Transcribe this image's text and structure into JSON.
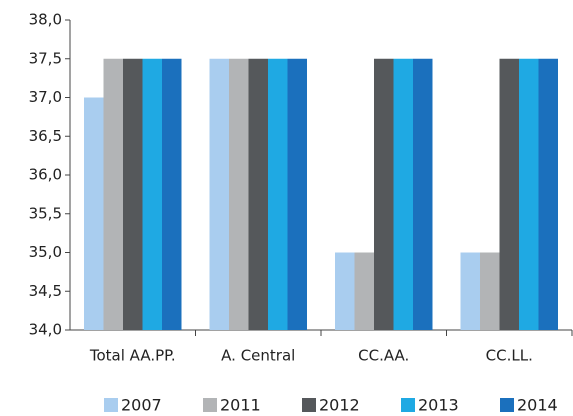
{
  "chart_data": {
    "type": "bar",
    "categories": [
      "Total AA.PP.",
      "A. Central",
      "CC.AA.",
      "CC.LL."
    ],
    "series": [
      {
        "name": "2007",
        "color": "#a9cdef",
        "values": [
          37,
          37.5,
          35,
          35
        ]
      },
      {
        "name": "2011",
        "color": "#b2b4b6",
        "values": [
          37.5,
          37.5,
          35,
          35
        ]
      },
      {
        "name": "2012",
        "color": "#55585b",
        "values": [
          37.5,
          37.5,
          37.5,
          37.5
        ]
      },
      {
        "name": "2013",
        "color": "#1fa9e3",
        "values": [
          37.5,
          37.5,
          37.5,
          37.5
        ]
      },
      {
        "name": "2014",
        "color": "#1b70bd",
        "values": [
          37.5,
          37.5,
          37.5,
          37.5
        ]
      }
    ],
    "ylim": [
      34,
      38
    ],
    "yticks": [
      {
        "value": 34,
        "label": "34,0"
      },
      {
        "value": 34.5,
        "label": "34,5"
      },
      {
        "value": 35,
        "label": "35,0"
      },
      {
        "value": 35.5,
        "label": "35,5"
      },
      {
        "value": 36,
        "label": "36,0"
      },
      {
        "value": 36.5,
        "label": "36,5"
      },
      {
        "value": 37,
        "label": "37,0"
      },
      {
        "value": 37.5,
        "label": "37,5"
      },
      {
        "value": 38,
        "label": "38,0"
      }
    ],
    "grid": false,
    "legend": "bottom"
  }
}
